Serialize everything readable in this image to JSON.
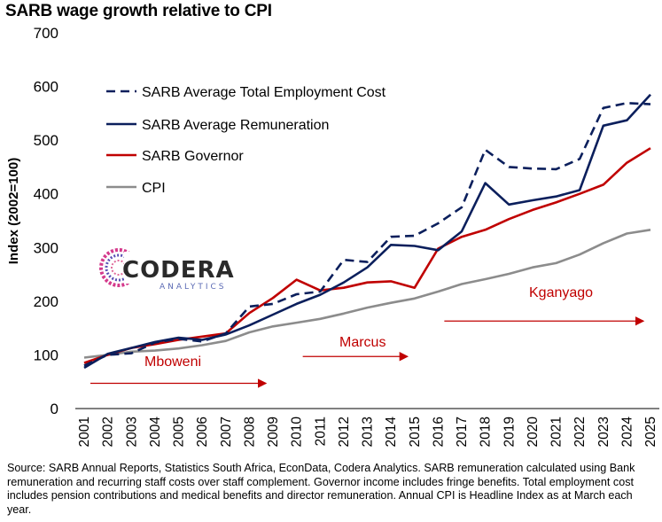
{
  "chart_data": {
    "type": "line",
    "title": "SARB wage growth relative to CPI",
    "ylabel": "Index (2002=100)",
    "xlabel": "",
    "ylim": [
      0,
      700
    ],
    "yticks": [
      0,
      100,
      200,
      300,
      400,
      500,
      600,
      700
    ],
    "grid": false,
    "legend_position": "top-left",
    "x": [
      "2001",
      "2002",
      "2003",
      "2004",
      "2005",
      "2006",
      "2007",
      "2008",
      "2009",
      "2010",
      "2011",
      "2012",
      "2013",
      "2014",
      "2015",
      "2016",
      "2017",
      "2018",
      "2019",
      "2020",
      "2021",
      "2022",
      "2023",
      "2024",
      "2025"
    ],
    "series": [
      {
        "name": "SARB Average Total Employment Cost",
        "color": "#0b1f5c",
        "dash": "dashed",
        "values": [
          80,
          100,
          103,
          123,
          130,
          125,
          140,
          190,
          195,
          213,
          218,
          277,
          273,
          320,
          322,
          345,
          375,
          482,
          450,
          447,
          446,
          465,
          560,
          569,
          567
        ]
      },
      {
        "name": "SARB Average Remuneration",
        "color": "#0b1f5c",
        "dash": "solid",
        "values": [
          76,
          102,
          113,
          124,
          132,
          128,
          138,
          155,
          175,
          195,
          212,
          235,
          263,
          305,
          303,
          295,
          330,
          420,
          380,
          388,
          395,
          407,
          527,
          537,
          585
        ]
      },
      {
        "name": "SARB Governor",
        "color": "#c00000",
        "dash": "solid",
        "values": [
          85,
          100,
          113,
          120,
          128,
          134,
          140,
          178,
          206,
          240,
          220,
          225,
          235,
          237,
          225,
          298,
          320,
          333,
          353,
          370,
          384,
          400,
          417,
          458,
          485
        ]
      },
      {
        "name": "CPI",
        "color": "#8c8c8c",
        "dash": "solid",
        "values": [
          95,
          100,
          106,
          108,
          112,
          118,
          126,
          142,
          153,
          160,
          167,
          177,
          188,
          197,
          205,
          218,
          232,
          241,
          251,
          263,
          271,
          287,
          308,
          326,
          333
        ]
      }
    ],
    "annotations": [
      {
        "text": "Mboweni",
        "from": "2001",
        "to": "2009",
        "y": 47
      },
      {
        "text": "Marcus",
        "from": "2010",
        "to": "2015",
        "y": 97
      },
      {
        "text": "Kganyago",
        "from": "2016",
        "to": "2025",
        "y": 163
      }
    ]
  },
  "logo": {
    "name": "CODERA",
    "sub": "ANALYTICS"
  },
  "source_note": "Source: SARB Annual Reports, Statistics South Africa, EconData, Codera Analytics. SARB remuneration calculated using Bank remuneration and recurring staff costs over staff complement. Governor income includes fringe benefits. Total employment cost includes pension contributions and medical benefits and director remuneration. Annual CPI is Headline Index as at March each year."
}
